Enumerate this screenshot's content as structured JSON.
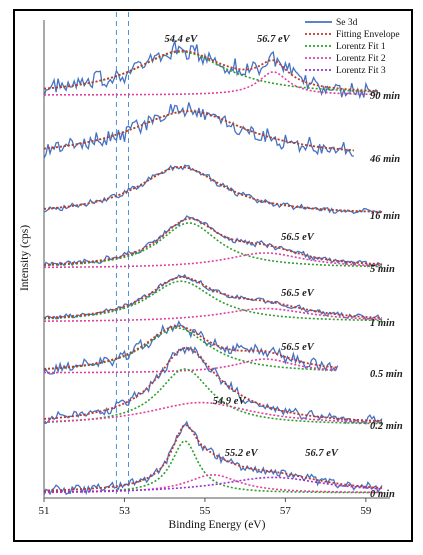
{
  "chart_data": {
    "type": "line",
    "title": "",
    "xlabel": "Binding Energy (eV)",
    "ylabel": "Intensity (cps)",
    "xlim": [
      51,
      59.6
    ],
    "x_ticks": [
      "51",
      "53",
      "55",
      "57",
      "59"
    ],
    "grid": false,
    "legend_position": "top-right",
    "legend": [
      {
        "name": "Se 3d",
        "color": "#4472c4",
        "style": "solid"
      },
      {
        "name": "Fitting Envelope",
        "color": "#c0392b",
        "style": "dotted"
      },
      {
        "name": "Lorentz Fit 1",
        "color": "#2ca02c",
        "style": "dotted"
      },
      {
        "name": "Lorentz Fit 2",
        "color": "#e040a0",
        "style": "dotted"
      },
      {
        "name": "Lorentz Fit 3",
        "color": "#9b30d0",
        "style": "dotted"
      }
    ],
    "reference_lines_x": [
      52.8,
      53.1
    ],
    "traces": [
      {
        "time": "90 min",
        "noise": 0.16,
        "peaks": [
          {
            "center": 54.4,
            "amp": 0.9,
            "width": 1.4
          },
          {
            "center": 56.7,
            "amp": 0.48,
            "width": 0.45
          }
        ],
        "labels": [
          {
            "text": "54.4 eV",
            "x": 54.4
          },
          {
            "text": "56.7 eV",
            "x": 56.7
          }
        ]
      },
      {
        "time": "46 min",
        "noise": 0.14,
        "peaks": [
          {
            "center": 54.6,
            "amp": 0.9,
            "width": 1.8
          }
        ],
        "labels": []
      },
      {
        "time": "16 min",
        "noise": 0.05,
        "peaks": [
          {
            "center": 54.4,
            "amp": 1.0,
            "width": 1.3
          }
        ],
        "labels": []
      },
      {
        "time": "5 min",
        "noise": 0.05,
        "peaks": [
          {
            "center": 54.6,
            "amp": 0.9,
            "width": 0.9
          },
          {
            "center": 56.5,
            "amp": 0.3,
            "width": 1.2
          }
        ],
        "labels": [
          {
            "text": "56.5 eV",
            "x": 57.3
          }
        ]
      },
      {
        "time": "1 min",
        "noise": 0.04,
        "peaks": [
          {
            "center": 54.4,
            "amp": 0.85,
            "width": 1.0
          },
          {
            "center": 56.5,
            "amp": 0.28,
            "width": 1.4
          }
        ],
        "labels": [
          {
            "text": "56.5 eV",
            "x": 57.3
          }
        ]
      },
      {
        "time": "0.5 min",
        "noise": 0.1,
        "peaks": [
          {
            "center": 54.3,
            "amp": 0.9,
            "width": 1.0
          },
          {
            "center": 56.5,
            "amp": 0.28,
            "width": 0.9
          }
        ],
        "labels": [
          {
            "text": "56.5 eV",
            "x": 57.3
          }
        ]
      },
      {
        "time": "0.2 min",
        "noise": 0.08,
        "peaks": [
          {
            "center": 54.5,
            "amp": 1.0,
            "width": 0.8
          },
          {
            "center": 54.9,
            "amp": 0.4,
            "width": 1.6
          }
        ],
        "labels": [
          {
            "text": "54.9 eV",
            "x": 55.6
          }
        ]
      },
      {
        "time": "0 min",
        "noise": 0.07,
        "peaks": [
          {
            "center": 54.5,
            "amp": 1.0,
            "width": 0.4
          },
          {
            "center": 55.2,
            "amp": 0.35,
            "width": 0.8
          },
          {
            "center": 56.7,
            "amp": 0.3,
            "width": 1.6
          }
        ],
        "labels": [
          {
            "text": "55.2 eV",
            "x": 55.9
          },
          {
            "text": "56.7 eV",
            "x": 57.9
          }
        ]
      }
    ]
  }
}
